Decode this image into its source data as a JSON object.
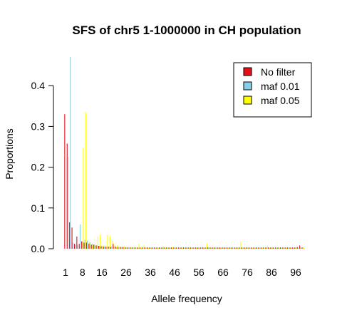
{
  "chart_data": {
    "type": "bar",
    "title": "SFS of chr5 1-1000000 in CH population",
    "xlabel": "Allele frequency",
    "ylabel": "Proportions",
    "ylim": [
      0,
      0.47
    ],
    "y_ticks": [
      "0.0",
      "0.1",
      "0.2",
      "0.3",
      "0.4"
    ],
    "x_ticks": [
      "1",
      "8",
      "16",
      "26",
      "36",
      "46",
      "56",
      "66",
      "76",
      "86",
      "96"
    ],
    "grid": false,
    "legend_position": "top-right",
    "categories": [
      1,
      2,
      3,
      4,
      5,
      6,
      7,
      8,
      9,
      10,
      11,
      12,
      13,
      14,
      15,
      16,
      17,
      18,
      19,
      20,
      21,
      22,
      23,
      24,
      25,
      26,
      27,
      28,
      29,
      30,
      31,
      32,
      33,
      34,
      35,
      36,
      37,
      38,
      39,
      40,
      41,
      42,
      43,
      44,
      45,
      46,
      47,
      48,
      49,
      50,
      51,
      52,
      53,
      54,
      55,
      56,
      57,
      58,
      59,
      60,
      61,
      62,
      63,
      64,
      65,
      66,
      67,
      68,
      69,
      70,
      71,
      72,
      73,
      74,
      75,
      76,
      77,
      78,
      79,
      80,
      81,
      82,
      83,
      84,
      85,
      86,
      87,
      88,
      89,
      90,
      91,
      92,
      93,
      94,
      95,
      96,
      97,
      98,
      99
    ],
    "series": [
      {
        "name": "No filter",
        "color": "#e3101a",
        "values": [
          0.33,
          0.258,
          0.065,
          0.052,
          0.012,
          0.03,
          0.012,
          0.018,
          0.015,
          0.015,
          0.012,
          0.01,
          0.01,
          0.008,
          0.007,
          0.006,
          0.005,
          0.005,
          0.005,
          0.004,
          0.012,
          0.005,
          0.004,
          0.004,
          0.004,
          0.003,
          0.003,
          0.003,
          0.003,
          0.003,
          0.003,
          0.003,
          0.003,
          0.003,
          0.003,
          0.003,
          0.003,
          0.003,
          0.003,
          0.003,
          0.003,
          0.003,
          0.003,
          0.003,
          0.003,
          0.003,
          0.003,
          0.003,
          0.003,
          0.003,
          0.003,
          0.003,
          0.003,
          0.003,
          0.003,
          0.003,
          0.003,
          0.003,
          0.003,
          0.003,
          0.003,
          0.003,
          0.003,
          0.003,
          0.003,
          0.003,
          0.003,
          0.003,
          0.003,
          0.003,
          0.003,
          0.003,
          0.003,
          0.003,
          0.003,
          0.003,
          0.003,
          0.003,
          0.003,
          0.003,
          0.003,
          0.003,
          0.003,
          0.003,
          0.003,
          0.003,
          0.003,
          0.003,
          0.003,
          0.003,
          0.003,
          0.003,
          0.003,
          0.003,
          0.003,
          0.003,
          0.004,
          0.008,
          0.003
        ]
      },
      {
        "name": "maf 0.01",
        "color": "#87ceeb",
        "values": [
          0.0,
          0.225,
          0.47,
          0.015,
          0.01,
          0.01,
          0.06,
          0.018,
          0.022,
          0.02,
          0.016,
          0.012,
          0.01,
          0.008,
          0.007,
          0.006,
          0.006,
          0.005,
          0.005,
          0.005,
          0.005,
          0.004,
          0.004,
          0.004,
          0.004,
          0.004,
          0.004,
          0.004,
          0.003,
          0.003,
          0.003,
          0.003,
          0.003,
          0.003,
          0.003,
          0.003,
          0.003,
          0.003,
          0.003,
          0.003,
          0.003,
          0.003,
          0.003,
          0.003,
          0.003,
          0.003,
          0.003,
          0.003,
          0.003,
          0.003,
          0.003,
          0.003,
          0.003,
          0.003,
          0.003,
          0.003,
          0.003,
          0.003,
          0.003,
          0.003,
          0.003,
          0.003,
          0.003,
          0.003,
          0.003,
          0.003,
          0.003,
          0.003,
          0.003,
          0.003,
          0.003,
          0.003,
          0.003,
          0.003,
          0.003,
          0.003,
          0.003,
          0.003,
          0.003,
          0.003,
          0.003,
          0.003,
          0.003,
          0.003,
          0.003,
          0.003,
          0.003,
          0.003,
          0.003,
          0.003,
          0.003,
          0.003,
          0.003,
          0.003,
          0.003,
          0.003,
          0.003,
          0.003,
          0.003
        ]
      },
      {
        "name": "maf 0.05",
        "color": "#ffff00",
        "values": [
          0.0,
          0.0,
          0.0,
          0.0,
          0.0,
          0.0,
          0.0,
          0.248,
          0.335,
          0.018,
          0.015,
          0.01,
          0.008,
          0.03,
          0.035,
          0.01,
          0.008,
          0.035,
          0.03,
          0.02,
          0.01,
          0.008,
          0.006,
          0.005,
          0.005,
          0.004,
          0.004,
          0.004,
          0.004,
          0.004,
          0.012,
          0.004,
          0.008,
          0.004,
          0.003,
          0.003,
          0.003,
          0.003,
          0.003,
          0.003,
          0.006,
          0.003,
          0.003,
          0.003,
          0.005,
          0.003,
          0.003,
          0.003,
          0.003,
          0.003,
          0.003,
          0.003,
          0.003,
          0.003,
          0.003,
          0.003,
          0.005,
          0.003,
          0.012,
          0.005,
          0.003,
          0.003,
          0.003,
          0.003,
          0.003,
          0.003,
          0.003,
          0.003,
          0.003,
          0.003,
          0.003,
          0.003,
          0.018,
          0.004,
          0.003,
          0.003,
          0.003,
          0.003,
          0.003,
          0.003,
          0.003,
          0.003,
          0.003,
          0.008,
          0.003,
          0.003,
          0.003,
          0.003,
          0.003,
          0.003,
          0.003,
          0.003,
          0.003,
          0.003,
          0.003,
          0.003,
          0.003,
          0.003,
          0.003
        ]
      }
    ]
  }
}
